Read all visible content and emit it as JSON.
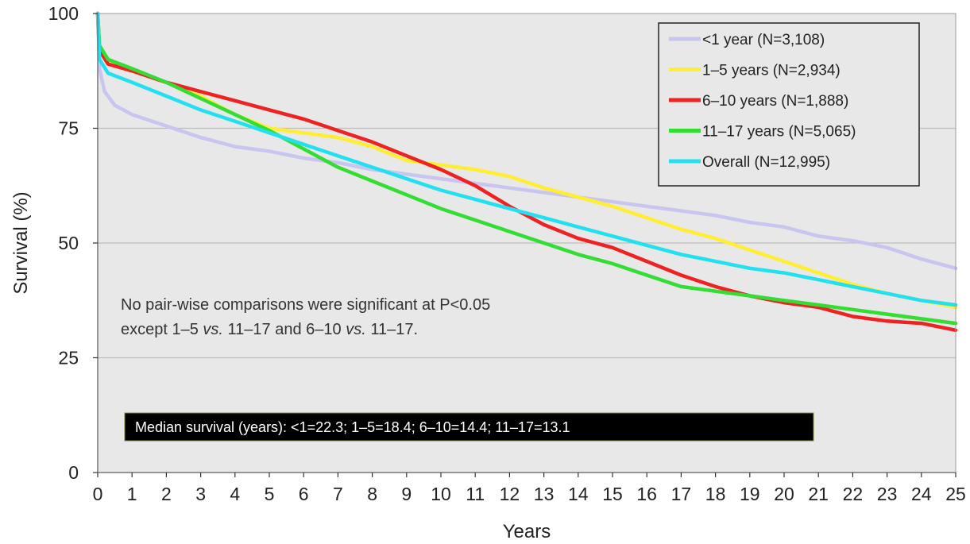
{
  "chart_data": {
    "type": "line",
    "title": "",
    "xlabel": "Years",
    "ylabel": "Survival (%)",
    "xlim": [
      0,
      25
    ],
    "ylim": [
      0,
      100
    ],
    "xticks": [
      "0",
      "1",
      "2",
      "3",
      "4",
      "5",
      "6",
      "7",
      "8",
      "9",
      "10",
      "11",
      "12",
      "13",
      "14",
      "15",
      "16",
      "17",
      "18",
      "19",
      "20",
      "21",
      "22",
      "23",
      "24",
      "25"
    ],
    "yticks": [
      "0",
      "25",
      "50",
      "75",
      "100"
    ],
    "grid": "horizontal",
    "legend_position": "top-right",
    "series": [
      {
        "name": "<1 year (N=3,108)",
        "color": "#c8c6ef",
        "points": [
          [
            0,
            100
          ],
          [
            0.05,
            88
          ],
          [
            0.2,
            83
          ],
          [
            0.5,
            80
          ],
          [
            1,
            78
          ],
          [
            2,
            75.5
          ],
          [
            3,
            73
          ],
          [
            4,
            71
          ],
          [
            5,
            70
          ],
          [
            6,
            68.5
          ],
          [
            7,
            67.5
          ],
          [
            8,
            66
          ],
          [
            9,
            65
          ],
          [
            10,
            64
          ],
          [
            11,
            63
          ],
          [
            12,
            62
          ],
          [
            13,
            61
          ],
          [
            14,
            60
          ],
          [
            15,
            59
          ],
          [
            16,
            58
          ],
          [
            17,
            57
          ],
          [
            18,
            56
          ],
          [
            19,
            54.5
          ],
          [
            20,
            53.5
          ],
          [
            21,
            51.5
          ],
          [
            22,
            50.5
          ],
          [
            23,
            49
          ],
          [
            24,
            46.5
          ],
          [
            25,
            44.5
          ]
        ]
      },
      {
        "name": "1–5 years (N=2,934)",
        "color": "#ffee33",
        "points": [
          [
            0,
            100
          ],
          [
            0.05,
            92
          ],
          [
            0.3,
            90
          ],
          [
            1,
            87.5
          ],
          [
            2,
            85
          ],
          [
            3,
            82
          ],
          [
            4,
            78
          ],
          [
            5,
            75
          ],
          [
            6,
            74
          ],
          [
            7,
            73
          ],
          [
            8,
            71
          ],
          [
            9,
            68
          ],
          [
            10,
            67
          ],
          [
            11,
            66
          ],
          [
            12,
            64.5
          ],
          [
            13,
            62
          ],
          [
            14,
            60
          ],
          [
            15,
            58
          ],
          [
            16,
            55.5
          ],
          [
            17,
            53
          ],
          [
            18,
            51
          ],
          [
            19,
            48.5
          ],
          [
            20,
            46
          ],
          [
            21,
            43.5
          ],
          [
            22,
            41
          ],
          [
            23,
            39
          ],
          [
            24,
            37.5
          ],
          [
            25,
            36
          ]
        ]
      },
      {
        "name": "6–10 years (N=1,888)",
        "color": "#ee2222",
        "points": [
          [
            0,
            100
          ],
          [
            0.05,
            92
          ],
          [
            0.3,
            89
          ],
          [
            1,
            87.5
          ],
          [
            2,
            85
          ],
          [
            3,
            83
          ],
          [
            4,
            81
          ],
          [
            5,
            79
          ],
          [
            6,
            77
          ],
          [
            7,
            74.5
          ],
          [
            8,
            72
          ],
          [
            9,
            69
          ],
          [
            10,
            66
          ],
          [
            11,
            62.5
          ],
          [
            12,
            58
          ],
          [
            13,
            54
          ],
          [
            14,
            51
          ],
          [
            15,
            49
          ],
          [
            16,
            46
          ],
          [
            17,
            43
          ],
          [
            18,
            40.5
          ],
          [
            19,
            38.5
          ],
          [
            20,
            37
          ],
          [
            21,
            36
          ],
          [
            22,
            34
          ],
          [
            23,
            33
          ],
          [
            24,
            32.5
          ],
          [
            25,
            31
          ]
        ]
      },
      {
        "name": "11–17 years (N=5,065)",
        "color": "#33dd33",
        "points": [
          [
            0,
            100
          ],
          [
            0.05,
            93
          ],
          [
            0.3,
            90
          ],
          [
            1,
            88
          ],
          [
            2,
            85
          ],
          [
            3,
            81.5
          ],
          [
            4,
            78
          ],
          [
            5,
            74.5
          ],
          [
            6,
            70.5
          ],
          [
            7,
            66.5
          ],
          [
            8,
            63.5
          ],
          [
            9,
            60.5
          ],
          [
            10,
            57.5
          ],
          [
            11,
            55
          ],
          [
            12,
            52.5
          ],
          [
            13,
            50
          ],
          [
            14,
            47.5
          ],
          [
            15,
            45.5
          ],
          [
            16,
            43
          ],
          [
            17,
            40.5
          ],
          [
            18,
            39.5
          ],
          [
            19,
            38.5
          ],
          [
            20,
            37.5
          ],
          [
            21,
            36.5
          ],
          [
            22,
            35.5
          ],
          [
            23,
            34.5
          ],
          [
            24,
            33.5
          ],
          [
            25,
            32.5
          ]
        ]
      },
      {
        "name": "Overall (N=12,995)",
        "color": "#22e0f0",
        "points": [
          [
            0,
            100
          ],
          [
            0.05,
            90
          ],
          [
            0.3,
            87
          ],
          [
            1,
            85
          ],
          [
            2,
            82
          ],
          [
            3,
            79
          ],
          [
            4,
            76.5
          ],
          [
            5,
            74
          ],
          [
            6,
            71.5
          ],
          [
            7,
            69
          ],
          [
            8,
            66.5
          ],
          [
            9,
            64
          ],
          [
            10,
            61.5
          ],
          [
            11,
            59.5
          ],
          [
            12,
            57.5
          ],
          [
            13,
            55.5
          ],
          [
            14,
            53.5
          ],
          [
            15,
            51.5
          ],
          [
            16,
            49.5
          ],
          [
            17,
            47.5
          ],
          [
            18,
            46
          ],
          [
            19,
            44.5
          ],
          [
            20,
            43.5
          ],
          [
            21,
            42
          ],
          [
            22,
            40.5
          ],
          [
            23,
            39
          ],
          [
            24,
            37.5
          ],
          [
            25,
            36.5
          ]
        ]
      }
    ],
    "annotations": {
      "note_line1": "No pair-wise comparisons were significant at P<0.05",
      "note_line2_a": "except 1–5 ",
      "note_line2_vs1": "vs.",
      "note_line2_b": " 11–17 and 6–10 ",
      "note_line2_vs2": "vs.",
      "note_line2_c": " 11–17.",
      "median": "Median survival (years): <1=22.3; 1–5=18.4; 6–10=14.4; 11–17=13.1"
    }
  }
}
